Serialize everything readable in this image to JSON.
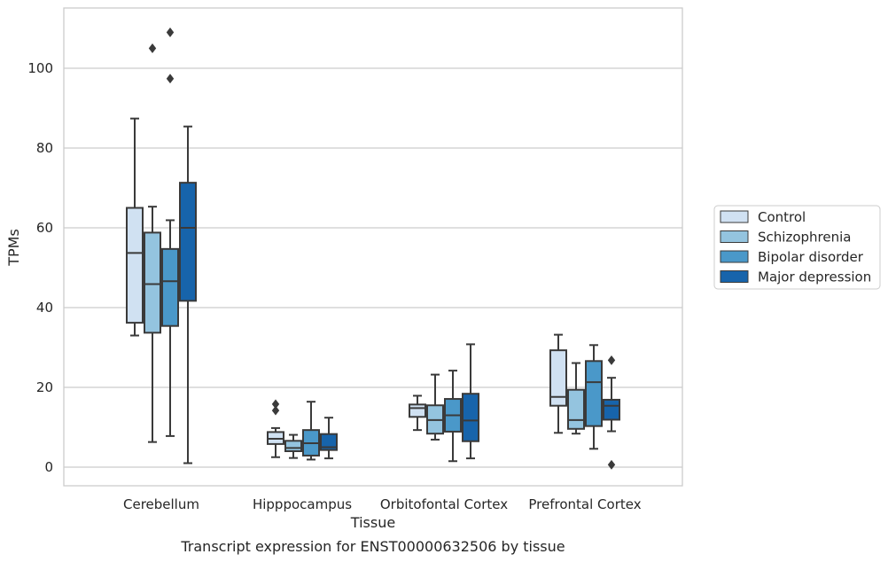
{
  "chart_data": {
    "type": "boxplot",
    "caption": "Transcript expression for ENST00000632506 by tissue",
    "xlabel": "Tissue",
    "ylabel": "TPMs",
    "ylim": [
      -5,
      115
    ],
    "yticks": [
      0,
      20,
      40,
      60,
      80,
      100
    ],
    "grid": "horizontal",
    "legend_position": "right",
    "categories": [
      "Cerebellum",
      "Hipppocampus",
      "Orbitofontal Cortex",
      "Prefrontal Cortex"
    ],
    "series": [
      {
        "name": "Control",
        "color": "#d0e1f2",
        "boxes": [
          {
            "whislo": 33,
            "q1": 36.2,
            "med": 53.7,
            "q3": 65,
            "whishi": 87.4,
            "fliers": []
          },
          {
            "whislo": 2.5,
            "q1": 5.8,
            "med": 7.1,
            "q3": 8.8,
            "whishi": 9.8,
            "fliers": [
              14.2,
              15.8
            ]
          },
          {
            "whislo": 9.3,
            "q1": 12.6,
            "med": 14.8,
            "q3": 15.7,
            "whishi": 17.9,
            "fliers": []
          },
          {
            "whislo": 8.6,
            "q1": 15.4,
            "med": 17.6,
            "q3": 29.3,
            "whishi": 33.2,
            "fliers": []
          }
        ]
      },
      {
        "name": "Schizophrenia",
        "color": "#94c4df",
        "boxes": [
          {
            "whislo": 6.3,
            "q1": 33.7,
            "med": 45.9,
            "q3": 58.8,
            "whishi": 65.3,
            "fliers": [
              105
            ]
          },
          {
            "whislo": 2.3,
            "q1": 4,
            "med": 4.8,
            "q3": 6.6,
            "whishi": 8.1,
            "fliers": []
          },
          {
            "whislo": 6.9,
            "q1": 8.4,
            "med": 11.8,
            "q3": 15.5,
            "whishi": 23.2,
            "fliers": []
          },
          {
            "whislo": 8.4,
            "q1": 9.6,
            "med": 11.8,
            "q3": 19.4,
            "whishi": 26.1,
            "fliers": []
          }
        ]
      },
      {
        "name": "Bipolar disorder",
        "color": "#4a98c9",
        "boxes": [
          {
            "whislo": 7.8,
            "q1": 35.4,
            "med": 46.6,
            "q3": 54.7,
            "whishi": 61.9,
            "fliers": [
              97.4,
              109
            ]
          },
          {
            "whislo": 1.9,
            "q1": 2.9,
            "med": 6,
            "q3": 9.3,
            "whishi": 16.4,
            "fliers": []
          },
          {
            "whislo": 1.5,
            "q1": 8.9,
            "med": 13,
            "q3": 17.1,
            "whishi": 24.2,
            "fliers": []
          },
          {
            "whislo": 4.6,
            "q1": 10.3,
            "med": 21.3,
            "q3": 26.6,
            "whishi": 30.6,
            "fliers": []
          }
        ]
      },
      {
        "name": "Major depression",
        "color": "#1764ab",
        "boxes": [
          {
            "whislo": 1,
            "q1": 41.7,
            "med": 60,
            "q3": 71.3,
            "whishi": 85.4,
            "fliers": []
          },
          {
            "whislo": 2.2,
            "q1": 4.3,
            "med": 5,
            "q3": 8.3,
            "whishi": 12.4,
            "fliers": []
          },
          {
            "whislo": 2.2,
            "q1": 6.5,
            "med": 11.7,
            "q3": 18.4,
            "whishi": 30.8,
            "fliers": []
          },
          {
            "whislo": 9,
            "q1": 11.9,
            "med": 15.4,
            "q3": 16.9,
            "whishi": 22.4,
            "fliers": [
              26.8,
              0.6
            ]
          }
        ]
      }
    ]
  }
}
